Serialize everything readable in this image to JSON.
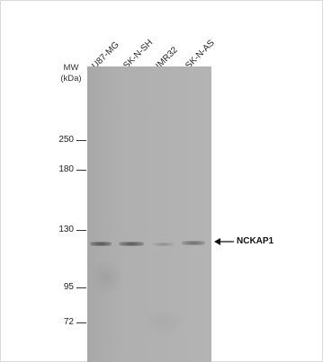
{
  "lanes": [
    "U87-MG",
    "SK-N-SH",
    "IMR32",
    "SK-N-AS"
  ],
  "mw": {
    "title_line1": "MW",
    "title_line2": "(kDa)",
    "markers": [
      "250",
      "180",
      "130",
      "95",
      "72"
    ]
  },
  "target_label": "NCKAP1",
  "colors": {
    "membrane": "#b0b0b0",
    "band": "#5a5a5a",
    "text": "#222222"
  }
}
